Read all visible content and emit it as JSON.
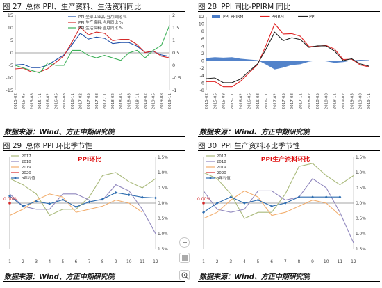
{
  "figures": [
    {
      "no": "图 27",
      "title": "总体 PPI、生产资料、生活资料同比",
      "source": "数据来源：Wind、方正中期研究院"
    },
    {
      "no": "图 28",
      "title": "PPI 同比-PPIRM 同比",
      "source": "数据来源：Wind、方正中期研究院"
    },
    {
      "no": "图 29",
      "title": "总体 PPI 环比季节性",
      "source": "数据来源：Wind、方正中期研究院"
    },
    {
      "no": "图 30",
      "title": "PPI 生产资料环比季节性",
      "source": "数据来源：Wind、方正中期研究院"
    }
  ],
  "chart_data": [
    {
      "type": "line",
      "x": [
        "2015-02",
        "2015-05",
        "2015-08",
        "2015-11",
        "2016-02",
        "2016-05",
        "2016-08",
        "2016-11",
        "2017-02",
        "2017-05",
        "2017-08",
        "2017-11",
        "2018-02",
        "2018-05",
        "2018-08",
        "2018-11",
        "2019-02",
        "2019-05",
        "2019-08",
        "2019-11"
      ],
      "ylim": [
        -15,
        15
      ],
      "yticks": [
        -15,
        -10,
        -5,
        0,
        5,
        10,
        15
      ],
      "y2lim": [
        -1,
        2
      ],
      "y2ticks": [
        -1,
        -0.5,
        0,
        0.5,
        1,
        1.5,
        2
      ],
      "legend_position": "top-right",
      "series": [
        {
          "name": "PPI:全部工业品:当月同比 %",
          "axis": "left",
          "color": "#1f4fa8",
          "values": [
            -4.8,
            -4.6,
            -5.9,
            -5.9,
            -4.9,
            -2.8,
            -0.8,
            3.3,
            7.8,
            5.5,
            6.3,
            5.8,
            3.7,
            4.1,
            4.1,
            2.7,
            0.1,
            0.6,
            -0.8,
            -1.4
          ]
        },
        {
          "name": "PPI:生产资料:当月同比 %",
          "axis": "left",
          "color": "#d42a2a",
          "values": [
            -6.4,
            -6.1,
            -7.6,
            -7.6,
            -6.3,
            -3.8,
            -1.1,
            4.4,
            10.4,
            7.2,
            8.3,
            7.8,
            4.9,
            5.4,
            5.4,
            3.3,
            0.1,
            0.8,
            -1.3,
            -2.0
          ]
        },
        {
          "name": "PPI:生活资料:当月同比 %",
          "axis": "right",
          "color": "#3fb15a",
          "values": [
            0.0,
            -0.1,
            -0.2,
            -0.3,
            0.1,
            0.0,
            0.0,
            0.6,
            0.6,
            0.4,
            0.3,
            0.4,
            0.3,
            0.2,
            0.5,
            0.6,
            0.3,
            0.6,
            0.8,
            1.6
          ]
        }
      ]
    },
    {
      "type": "line",
      "x": [
        "2015-02",
        "2015-05",
        "2015-08",
        "2015-11",
        "2016-02",
        "2016-05",
        "2016-08",
        "2016-11",
        "2017-02",
        "2017-05",
        "2017-08",
        "2017-11",
        "2018-02",
        "2018-05",
        "2018-08",
        "2018-11",
        "2019-02",
        "2019-05",
        "2019-08",
        "2019-11"
      ],
      "ylim": [
        -8,
        12
      ],
      "yticks": [
        -8,
        -6,
        -4,
        -2,
        0,
        2,
        4,
        6,
        8,
        10,
        12
      ],
      "legend_position": "top",
      "series": [
        {
          "name": "PPI-PPIRM",
          "style": "area",
          "color": "#4a7cc7",
          "values": [
            0.8,
            1.0,
            0.9,
            1.0,
            0.6,
            0.4,
            0.2,
            -1.0,
            -2.3,
            -1.8,
            -1.1,
            -0.9,
            -0.2,
            0.1,
            -0.1,
            -0.5,
            -0.3,
            0.1,
            0.3,
            0.2
          ]
        },
        {
          "name": "PPIRM",
          "color": "#e02020",
          "values": [
            -5.6,
            -5.6,
            -7.0,
            -7.0,
            -5.5,
            -3.2,
            -1.0,
            4.3,
            10.1,
            7.3,
            7.4,
            6.7,
            3.9,
            4.0,
            4.2,
            3.2,
            0.4,
            0.5,
            -1.1,
            -1.6
          ]
        },
        {
          "name": "PPI",
          "color": "#222222",
          "values": [
            -4.8,
            -4.6,
            -5.9,
            -5.9,
            -4.9,
            -2.8,
            -0.8,
            3.3,
            7.8,
            5.5,
            6.3,
            5.8,
            3.7,
            4.1,
            4.1,
            2.7,
            0.1,
            0.6,
            -0.8,
            -1.4
          ]
        }
      ]
    },
    {
      "type": "line",
      "annotation": "PPI环比",
      "x": [
        1,
        2,
        3,
        4,
        5,
        6,
        7,
        8,
        9,
        10,
        11,
        12
      ],
      "ylim": [
        -1.5,
        1.5
      ],
      "yticks": [
        -1.5,
        -1.0,
        -0.5,
        0.0,
        0.5,
        1.0,
        1.5
      ],
      "ytick_labels": [
        "1.5%",
        "1.0%",
        "0.5%",
        "0.0%",
        "0.5%",
        "1.0%",
        "1.5%"
      ],
      "first_point_label": "0.00%",
      "legend_position": "top-left",
      "series": [
        {
          "name": "2017",
          "color": "#a9b97a",
          "values": [
            0.8,
            0.6,
            0.3,
            -0.4,
            -0.2,
            -0.2,
            0.2,
            0.9,
            1.0,
            0.7,
            0.5,
            0.8
          ]
        },
        {
          "name": "2018",
          "color": "#8f86bd",
          "values": [
            0.3,
            -0.1,
            -0.2,
            -0.2,
            0.3,
            0.3,
            0.1,
            0.1,
            0.6,
            0.4,
            -0.2,
            -1.0
          ]
        },
        {
          "name": "2019",
          "color": "#f2ae6e",
          "values": [
            -0.4,
            -0.2,
            0.1,
            0.3,
            0.2,
            -0.3,
            -0.2,
            -0.1,
            0.1,
            0.0,
            -0.3,
            null
          ]
        },
        {
          "name": "2020",
          "color": "#d42a2a",
          "values": [
            0.0,
            null,
            null,
            null,
            null,
            null,
            null,
            null,
            null,
            null,
            null,
            null
          ]
        },
        {
          "name": "3年均值",
          "color": "#2e6db0",
          "marker": "diamond",
          "values": [
            0.23,
            -0.1,
            0.06,
            -0.02,
            0.11,
            -0.12,
            0.04,
            0.13,
            0.34,
            0.27,
            0.19,
            0.17
          ]
        }
      ]
    },
    {
      "type": "line",
      "annotation": "PPI生产资料环比",
      "x": [
        1,
        2,
        3,
        4,
        5,
        6,
        7,
        8,
        9,
        10,
        11,
        12
      ],
      "ylim": [
        -1.5,
        1.5
      ],
      "yticks": [
        -1.5,
        -1.0,
        -0.5,
        0.0,
        0.5,
        1.0,
        1.5
      ],
      "ytick_labels": [
        "1.5%",
        "1.0%",
        "0.5%",
        "0.0%",
        "0.5%",
        "1.0%",
        "1.5%"
      ],
      "first_point_label": "0.00%",
      "legend_position": "top-left",
      "series": [
        {
          "name": "2017",
          "color": "#a9b97a",
          "values": [
            1.0,
            0.8,
            0.3,
            -0.5,
            -0.3,
            -0.3,
            0.3,
            1.2,
            1.3,
            0.9,
            0.6,
            0.9
          ]
        },
        {
          "name": "2018",
          "color": "#8f86bd",
          "values": [
            0.4,
            -0.2,
            -0.3,
            -0.2,
            0.4,
            0.4,
            0.1,
            0.2,
            0.8,
            0.5,
            -0.3,
            -1.3
          ]
        },
        {
          "name": "2019",
          "color": "#f2ae6e",
          "values": [
            -0.5,
            -0.3,
            0.1,
            0.4,
            0.2,
            -0.4,
            -0.3,
            -0.1,
            0.1,
            0.0,
            -0.4,
            null
          ]
        },
        {
          "name": "2020",
          "color": "#d42a2a",
          "values": [
            0.0,
            null,
            null,
            null,
            null,
            null,
            null,
            null,
            null,
            null,
            null,
            null
          ]
        },
        {
          "name": "3年均值",
          "color": "#2e6db0",
          "marker": "diamond",
          "values": [
            -0.3,
            0.0,
            0.2,
            0.0,
            0.1,
            -0.1,
            0.0,
            0.2,
            0.2,
            0.2,
            0.2,
            null
          ]
        }
      ]
    }
  ],
  "controls": {
    "zoom_out_icon": "minus-circle-icon",
    "layout_icon": "wrap-layout-icon",
    "zoom_in_icon": "magnify-plus-icon"
  }
}
